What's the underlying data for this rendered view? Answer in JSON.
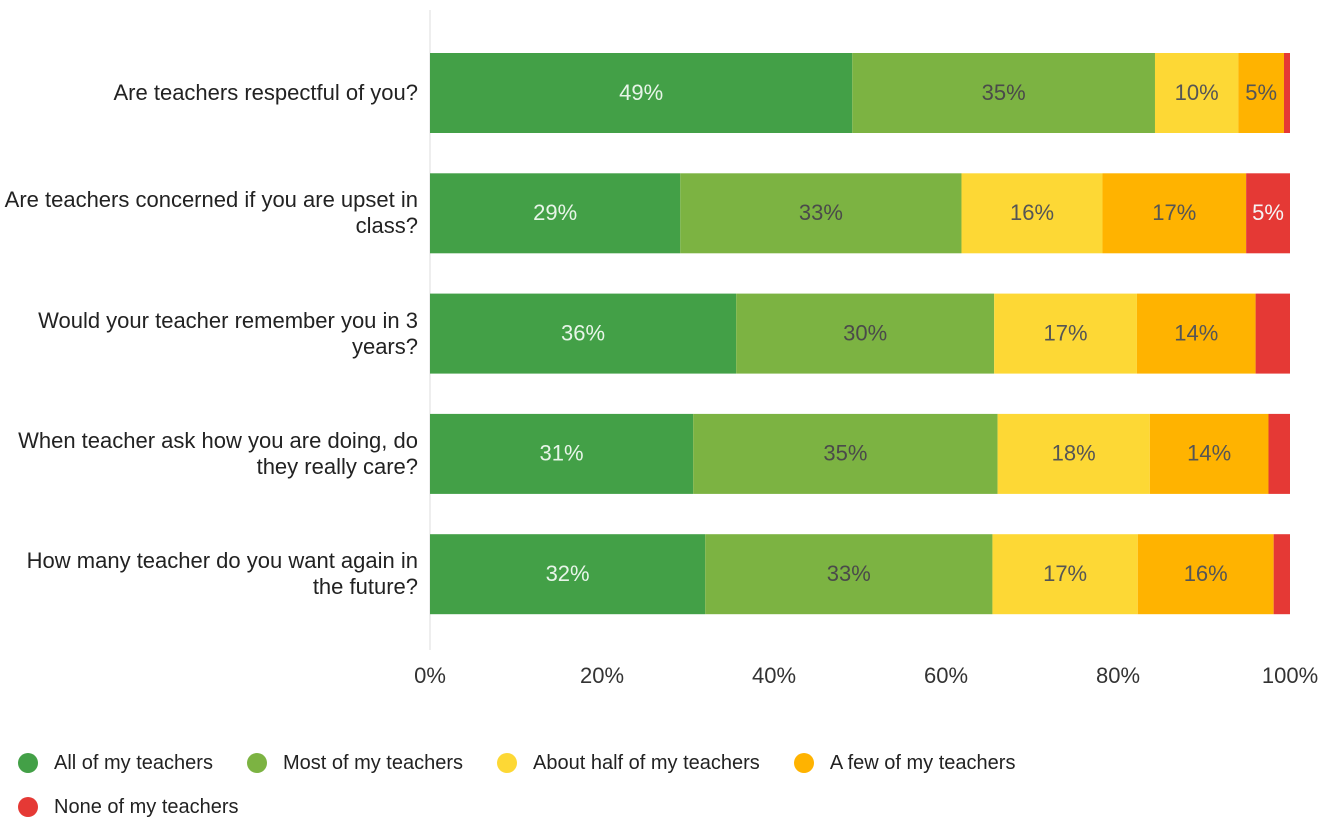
{
  "chart_data": {
    "type": "stacked_bar_horizontal",
    "categories": [
      "Are teachers respectful of you?",
      "Are teachers concerned if you are upset in class?",
      "Would your teacher remember you in 3 years?",
      "When teacher ask how you are doing, do they really care?",
      "How many teacher do you want again in the future?"
    ],
    "series": [
      {
        "name": "All of my teachers",
        "color": "#43a047",
        "label_color": "#e8f5e9",
        "values": [
          49.1,
          29.1,
          35.6,
          30.6,
          32
        ],
        "value_labels": [
          "49%",
          "29%",
          "36%",
          "31%",
          "32%"
        ]
      },
      {
        "name": "Most of my teachers",
        "color": "#7cb342",
        "label_color": "#4a4a4a",
        "values": [
          35.2,
          32.7,
          30,
          35.4,
          33.4
        ],
        "value_labels": [
          "35%",
          "33%",
          "30%",
          "35%",
          "33%"
        ]
      },
      {
        "name": "About half of my teachers",
        "color": "#fdd835",
        "label_color": "#555555",
        "values": [
          9.7,
          16.4,
          16.6,
          17.7,
          16.9
        ],
        "value_labels": [
          "10%",
          "16%",
          "17%",
          "18%",
          "17%"
        ]
      },
      {
        "name": "A few of my teachers",
        "color": "#ffb300",
        "label_color": "#555555",
        "values": [
          5.3,
          16.7,
          13.8,
          13.8,
          15.8
        ],
        "value_labels": [
          "5%",
          "17%",
          "14%",
          "14%",
          "16%"
        ]
      },
      {
        "name": "None of my teachers",
        "color": "#e53935",
        "label_color": "#f5f5f5",
        "values": [
          0.7,
          5.1,
          4,
          2.5,
          1.9
        ],
        "value_labels": [
          null,
          "5%",
          null,
          null,
          null
        ]
      }
    ],
    "xlim": [
      0,
      100
    ],
    "xticks": [
      {
        "value": 0,
        "label": "0%"
      },
      {
        "value": 20,
        "label": "20%"
      },
      {
        "value": 40,
        "label": "40%"
      },
      {
        "value": 60,
        "label": "60%"
      },
      {
        "value": 80,
        "label": "80%"
      },
      {
        "value": 100,
        "label": "100%"
      }
    ],
    "legend": "bottom"
  }
}
